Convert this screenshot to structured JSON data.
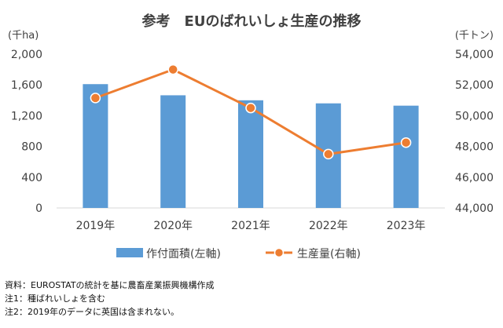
{
  "chart_data": {
    "type": "bar+line",
    "title": "参考　EUのばれいしょ生産の推移",
    "categories": [
      "2019年",
      "2020年",
      "2021年",
      "2022年",
      "2023年"
    ],
    "left_axis": {
      "unit": "(千ha)",
      "range": [
        0,
        2000
      ],
      "ticks": [
        0,
        400,
        800,
        1200,
        1600,
        2000
      ],
      "tick_labels": [
        "0",
        "400",
        "800",
        "1,200",
        "1,600",
        "2,000"
      ]
    },
    "right_axis": {
      "unit": "(千トン)",
      "range": [
        44000,
        54000
      ],
      "ticks": [
        44000,
        46000,
        48000,
        50000,
        52000,
        54000
      ],
      "tick_labels": [
        "44,000",
        "46,000",
        "48,000",
        "50,000",
        "52,000",
        "54,000"
      ]
    },
    "series": [
      {
        "name": "作付面積(左軸)",
        "type": "bar",
        "axis": "left",
        "color": "#5b9bd5",
        "values": [
          1610,
          1465,
          1400,
          1360,
          1330
        ]
      },
      {
        "name": "生産量(右軸)",
        "type": "line",
        "axis": "right",
        "color": "#ed7d31",
        "values": [
          51150,
          53000,
          50500,
          47500,
          48250
        ]
      }
    ],
    "grid": false,
    "legend": "bottom"
  },
  "notes": [
    "資料：EUROSTATの統計を基に農畜産業振興機構作成",
    "注1：種ばれいしょを含む",
    "注2：2019年のデータに英国は含まれない。"
  ]
}
